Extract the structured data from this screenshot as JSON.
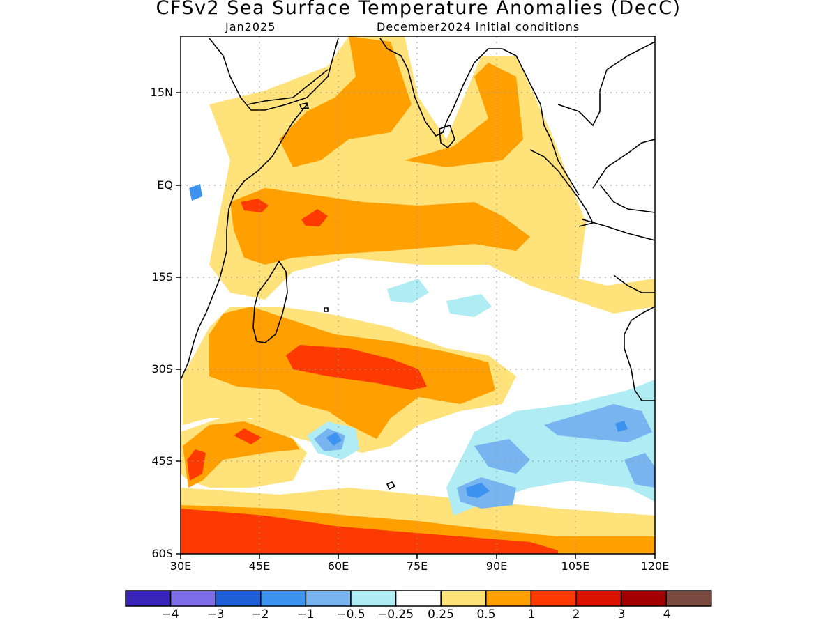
{
  "title": "CFSv2 Sea Surface Temperature Anomalies (DecC)",
  "subtitle_left": "Jan2025",
  "subtitle_right": "December2024 initial conditions",
  "map": {
    "lon_range": [
      30,
      120
    ],
    "lat_range": [
      -60,
      24
    ],
    "lat_labels": [
      "15N",
      "EQ",
      "15S",
      "30S",
      "45S",
      "60S"
    ],
    "lon_labels": [
      "30E",
      "45E",
      "60E",
      "75E",
      "90E",
      "105E",
      "120E"
    ],
    "regions": [
      {
        "name": "north-arabian-sea",
        "level": "0.5"
      },
      {
        "name": "bay-of-bengal",
        "level": "1"
      },
      {
        "name": "equatorial-band",
        "level": "1"
      },
      {
        "name": "subtropical-south",
        "level": "2"
      },
      {
        "name": "southern-ocean-band",
        "level": "2"
      },
      {
        "name": "southeast-cool-pool",
        "level": "-1"
      }
    ]
  },
  "colorbar": {
    "labels": [
      "−4",
      "−3",
      "−2",
      "−1",
      "−0.5",
      "−0.25",
      "0.25",
      "0.5",
      "1",
      "2",
      "3",
      "4"
    ],
    "colors": [
      "#3a24b8",
      "#7f6ce8",
      "#1f5fd6",
      "#3c94f0",
      "#78b4f0",
      "#b0ecf4",
      "#ffffff",
      "#ffe27a",
      "#ffa000",
      "#ff3a00",
      "#dc1200",
      "#a00000",
      "#7a4a40"
    ]
  },
  "palette": {
    "c_neg4": "#3a24b8",
    "c_neg3": "#7f6ce8",
    "c_neg2": "#1f5fd6",
    "c_neg1": "#3c94f0",
    "c_neg05": "#78b4f0",
    "c_neg025": "#b0ecf4",
    "c_pos05": "#ffe27a",
    "c_pos1": "#ffa000",
    "c_pos2": "#ff3a00",
    "c_pos3": "#dc1200",
    "c_pos4": "#a00000",
    "c_pos5": "#7a4a40",
    "land_outline": "#000000",
    "grid": "#999999"
  }
}
